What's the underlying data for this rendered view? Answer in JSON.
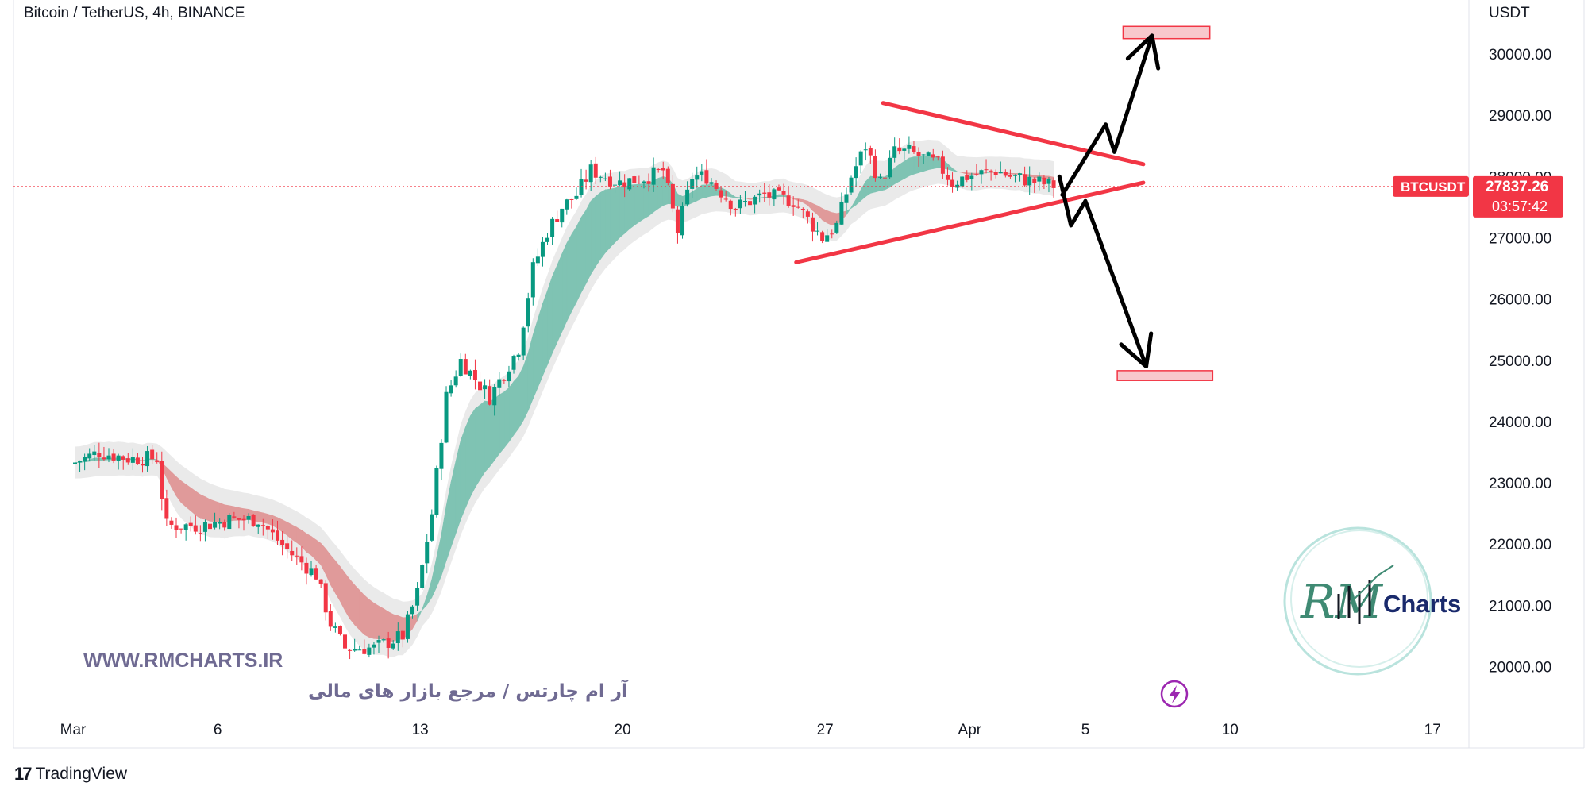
{
  "header": {
    "title": "Bitcoin / TetherUS, 4h, BINANCE"
  },
  "footer": {
    "brand_logo": "17",
    "brand_name": "TradingView"
  },
  "watermark": {
    "site": "WWW.RMCHARTS.IR",
    "tagline": "آر ام چارتس / مرجع بازار های مالی",
    "logo_text": "Charts",
    "logo_script": "RM"
  },
  "chart_data": {
    "type": "candlestick",
    "symbol": "BTCUSDT",
    "currency_label": "USDT",
    "last_price": "27837.26",
    "countdown": "03:57:42",
    "y_axis": {
      "ticks": [
        20000,
        21000,
        22000,
        23000,
        24000,
        25000,
        26000,
        27000,
        28000,
        29000,
        30000
      ],
      "range": [
        19500,
        30800
      ]
    },
    "x_axis": {
      "labels": [
        "Mar",
        "6",
        "13",
        "20",
        "27",
        "Apr",
        "5",
        "10",
        "17"
      ]
    },
    "price_path": [
      {
        "d": 0.0,
        "p": 23300
      },
      {
        "d": 1.0,
        "p": 23500
      },
      {
        "d": 2.0,
        "p": 23400
      },
      {
        "d": 3.0,
        "p": 23400
      },
      {
        "d": 3.3,
        "p": 22300
      },
      {
        "d": 4.5,
        "p": 22300
      },
      {
        "d": 5.5,
        "p": 22400
      },
      {
        "d": 6.5,
        "p": 22400
      },
      {
        "d": 7.5,
        "p": 21900
      },
      {
        "d": 8.5,
        "p": 21500
      },
      {
        "d": 9.0,
        "p": 20700
      },
      {
        "d": 9.5,
        "p": 20300
      },
      {
        "d": 10.5,
        "p": 20300
      },
      {
        "d": 11.5,
        "p": 20500
      },
      {
        "d": 12.0,
        "p": 21200
      },
      {
        "d": 12.5,
        "p": 22500
      },
      {
        "d": 13.0,
        "p": 24400
      },
      {
        "d": 13.5,
        "p": 25000
      },
      {
        "d": 14.0,
        "p": 24700
      },
      {
        "d": 14.5,
        "p": 24400
      },
      {
        "d": 15.0,
        "p": 24800
      },
      {
        "d": 15.5,
        "p": 25200
      },
      {
        "d": 16.0,
        "p": 26500
      },
      {
        "d": 16.5,
        "p": 27100
      },
      {
        "d": 17.0,
        "p": 27500
      },
      {
        "d": 17.5,
        "p": 27700
      },
      {
        "d": 18.0,
        "p": 28100
      },
      {
        "d": 19.0,
        "p": 27900
      },
      {
        "d": 20.0,
        "p": 28000
      },
      {
        "d": 20.5,
        "p": 28100
      },
      {
        "d": 21.0,
        "p": 27100
      },
      {
        "d": 21.5,
        "p": 28000
      },
      {
        "d": 22.0,
        "p": 28000
      },
      {
        "d": 23.0,
        "p": 27500
      },
      {
        "d": 24.0,
        "p": 27700
      },
      {
        "d": 25.0,
        "p": 27600
      },
      {
        "d": 25.5,
        "p": 27300
      },
      {
        "d": 26.0,
        "p": 27000
      },
      {
        "d": 26.5,
        "p": 27200
      },
      {
        "d": 27.0,
        "p": 28000
      },
      {
        "d": 27.5,
        "p": 28500
      },
      {
        "d": 28.0,
        "p": 27900
      },
      {
        "d": 28.5,
        "p": 28400
      },
      {
        "d": 29.0,
        "p": 28400
      },
      {
        "d": 30.0,
        "p": 28200
      },
      {
        "d": 30.5,
        "p": 27900
      },
      {
        "d": 31.0,
        "p": 28000
      },
      {
        "d": 32.0,
        "p": 28100
      },
      {
        "d": 32.5,
        "p": 28000
      },
      {
        "d": 33.5,
        "p": 27900
      },
      {
        "d": 34.0,
        "p": 27850
      }
    ],
    "triangle": {
      "upper": [
        {
          "d": 28.0,
          "p": 29200
        },
        {
          "d": 37.0,
          "p": 28200
        }
      ],
      "lower": [
        {
          "d": 25.0,
          "p": 26600
        },
        {
          "d": 37.0,
          "p": 27900
        }
      ]
    },
    "targets": [
      {
        "name": "upper-target",
        "p_low": 30250,
        "p_high": 30450,
        "d_start": 36.3,
        "d_end": 39.3
      },
      {
        "name": "lower-target",
        "p_low": 24670,
        "p_high": 24830,
        "d_start": 36.1,
        "d_end": 39.4
      }
    ],
    "scenario_up": [
      {
        "d": 34.2,
        "p": 27700
      },
      {
        "d": 35.7,
        "p": 28850
      },
      {
        "d": 36.0,
        "p": 28400
      },
      {
        "d": 37.3,
        "p": 30300
      }
    ],
    "scenario_down": [
      {
        "d": 34.1,
        "p": 28000
      },
      {
        "d": 34.5,
        "p": 27200
      },
      {
        "d": 35.0,
        "p": 27600
      },
      {
        "d": 37.1,
        "p": 24900
      }
    ]
  }
}
